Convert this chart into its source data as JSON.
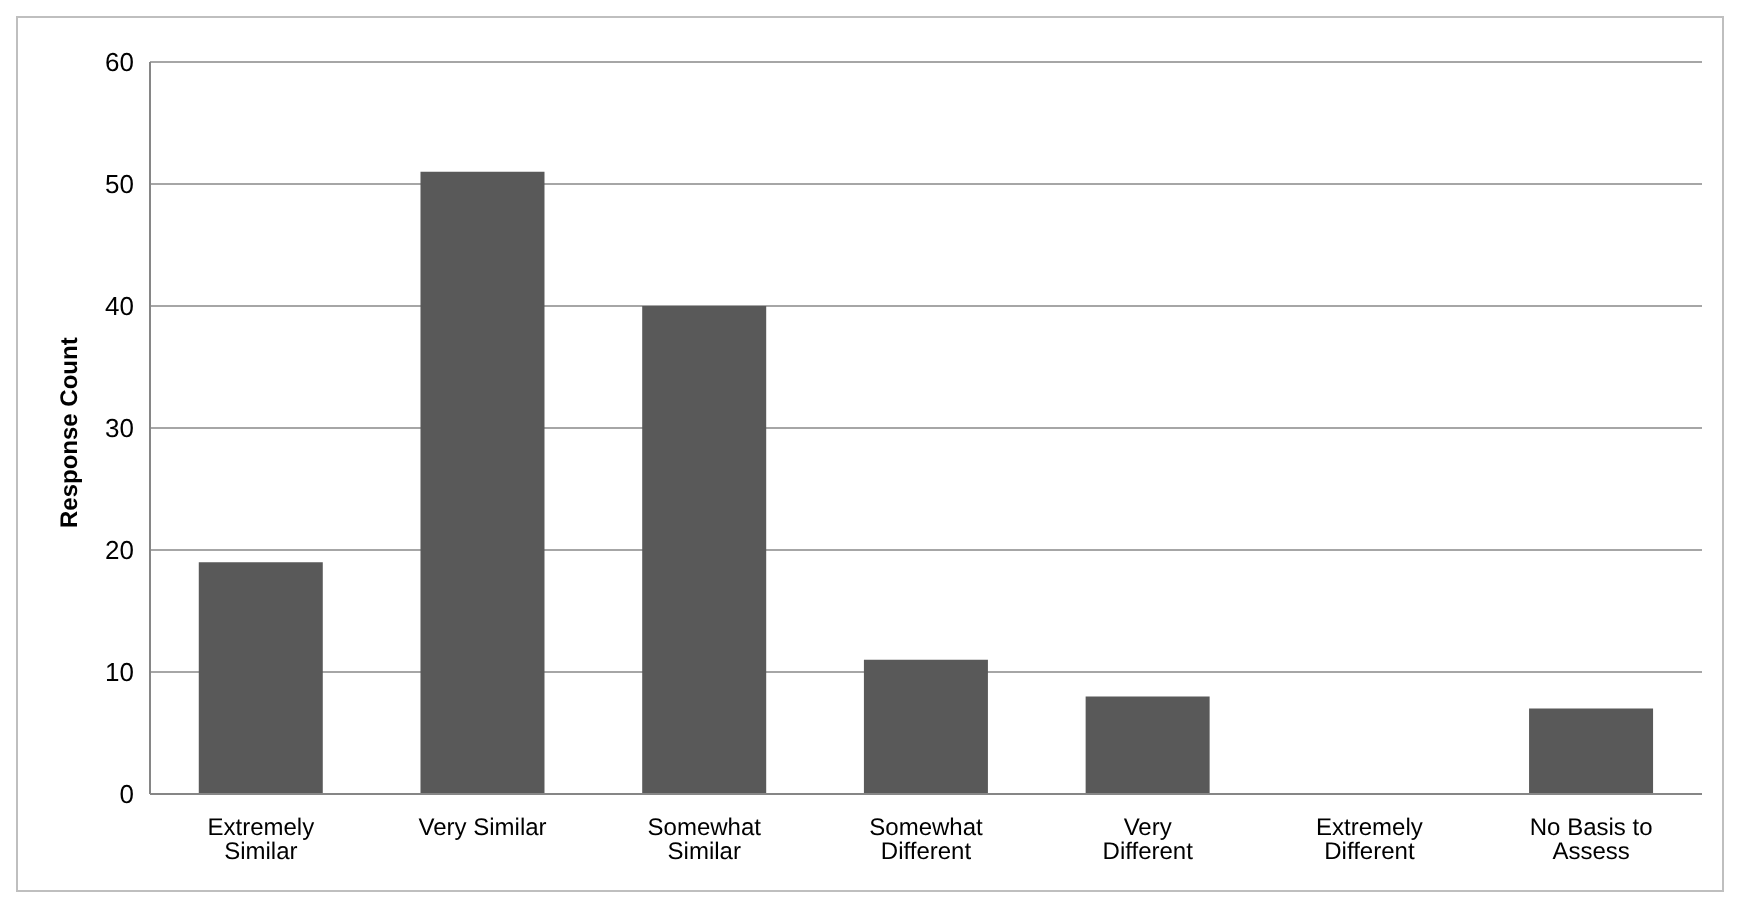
{
  "chart_data": {
    "type": "bar",
    "ylabel": "Response Count",
    "categories": [
      "Extremely Similar",
      "Very Similar",
      "Somewhat Similar",
      "Somewhat Different",
      "Very Different",
      "Extremely Different",
      "No Basis to Assess"
    ],
    "values": [
      19,
      51,
      40,
      11,
      8,
      0,
      7
    ],
    "color": "#595959",
    "ylim": [
      0,
      60
    ],
    "yticks": [
      0,
      10,
      20,
      30,
      40,
      50,
      60
    ],
    "grid": "y",
    "legend": false
  }
}
